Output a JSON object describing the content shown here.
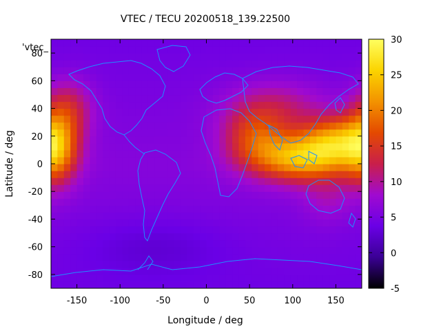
{
  "chart_data": {
    "type": "heatmap",
    "title": "VTEC / TECU 20200518_139.22500",
    "xlabel": "Longitude / deg",
    "ylabel": "Latitude / deg",
    "key_label": "'vtec_",
    "xlim": [
      -180,
      180
    ],
    "ylim": [
      -90,
      90
    ],
    "x_ticks": [
      -150,
      -100,
      -50,
      0,
      50,
      100,
      150
    ],
    "y_ticks": [
      -80,
      -60,
      -40,
      -20,
      0,
      20,
      40,
      60,
      80
    ],
    "colorbar": {
      "range": [
        -5,
        30
      ],
      "ticks": [
        -5,
        0,
        5,
        10,
        15,
        20,
        25,
        30
      ],
      "palette": [
        "#000000",
        "#3b0096",
        "#6a00e6",
        "#a00ad0",
        "#c91f4a",
        "#e44a00",
        "#f39300",
        "#fbd400",
        "#ffff60"
      ]
    },
    "grid": false,
    "background_value": 6,
    "peaks": [
      {
        "lon": 110,
        "lat": 5,
        "sigma_lon": 40,
        "sigma_lat": 12,
        "amp": 18
      },
      {
        "lon": 150,
        "lat": 18,
        "sigma_lon": 25,
        "sigma_lat": 12,
        "amp": 12
      },
      {
        "lon": -175,
        "lat": 12,
        "sigma_lon": 18,
        "sigma_lat": 18,
        "amp": 15
      },
      {
        "lon": 55,
        "lat": 20,
        "sigma_lon": 25,
        "sigma_lat": 14,
        "amp": 8
      },
      {
        "lon": 80,
        "lat": 40,
        "sigma_lon": 40,
        "sigma_lat": 14,
        "amp": 6
      },
      {
        "lon": -160,
        "lat": 40,
        "sigma_lon": 20,
        "sigma_lat": 15,
        "amp": 7
      },
      {
        "lon": 140,
        "lat": -25,
        "sigma_lon": 20,
        "sigma_lat": 12,
        "amp": 3
      },
      {
        "lon": -60,
        "lat": -60,
        "sigma_lon": 60,
        "sigma_lat": 15,
        "amp": -2
      }
    ],
    "coastline_color": "#1f8fff"
  }
}
